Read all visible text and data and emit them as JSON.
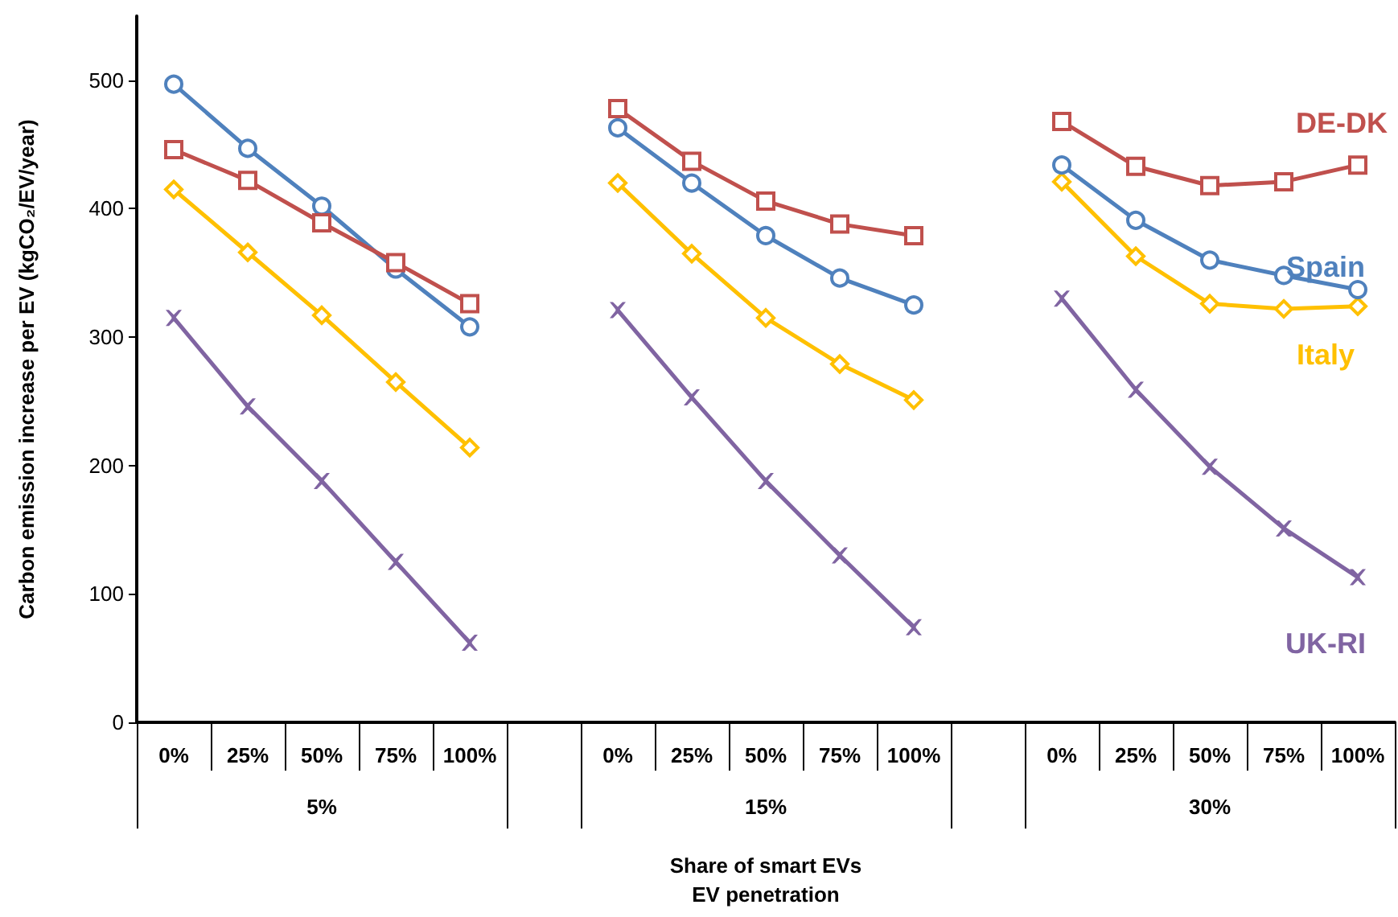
{
  "chart_data": {
    "type": "line",
    "xlabel": "Share of smart EVs\nEV penetration",
    "ylabel": "Carbon emission increase per EV (kgCO₂/EV/year)",
    "categories": [
      "0%",
      "25%",
      "50%",
      "75%",
      "100%",
      null,
      "0%",
      "25%",
      "50%",
      "75%",
      "100%",
      null,
      "0%",
      "25%",
      "50%",
      "75%",
      "100%"
    ],
    "annotations": [
      "5%",
      "15%",
      "30%"
    ],
    "ylim": [
      0,
      550
    ],
    "yticks": [
      0,
      100,
      200,
      300,
      400,
      500
    ],
    "grid": false,
    "legend": false,
    "series": [
      {
        "name": "DE-DK",
        "color": "#c0504d",
        "marker": "square",
        "values": [
          446,
          422,
          389,
          358,
          326,
          null,
          478,
          437,
          406,
          388,
          379,
          null,
          468,
          433,
          418,
          421,
          434
        ]
      },
      {
        "name": "Spain",
        "color": "#4f81bd",
        "marker": "circle",
        "values": [
          497,
          447,
          402,
          353,
          308,
          null,
          463,
          420,
          379,
          346,
          325,
          null,
          434,
          391,
          360,
          348,
          337
        ]
      },
      {
        "name": "Italy",
        "color": "#ffc000",
        "marker": "diamond",
        "values": [
          415,
          366,
          317,
          265,
          214,
          null,
          420,
          365,
          315,
          279,
          251,
          null,
          421,
          363,
          326,
          322,
          324
        ]
      },
      {
        "name": "UK-RI",
        "color": "#8064a2",
        "marker": "cross",
        "values": [
          315,
          246,
          188,
          125,
          62,
          null,
          321,
          253,
          188,
          130,
          74,
          null,
          330,
          259,
          199,
          151,
          113
        ]
      }
    ]
  }
}
